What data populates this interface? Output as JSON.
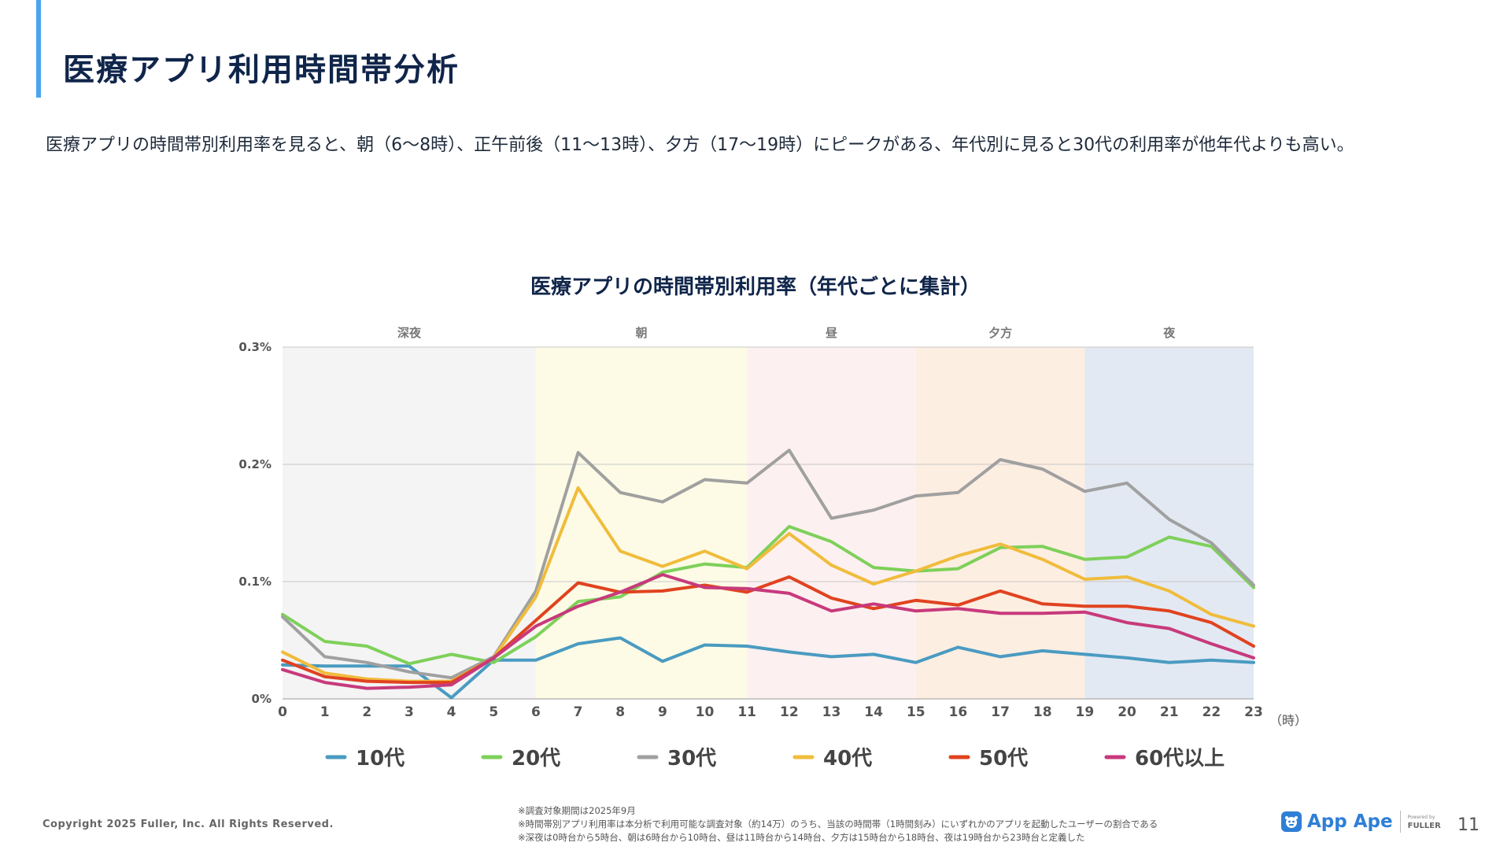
{
  "page": {
    "title": "医療アプリ利用時間帯分析",
    "summary": "医療アプリの時間帯別利用率を見ると、朝（6～8時）、正午前後（11～13時）、夕方（17～19時）にピークがある、年代別に見ると30代の利用率が他年代よりも高い。",
    "copyright": "Copyright 2025 Fuller, Inc. All Rights Reserved.",
    "notes": [
      "※調査対象期間は2025年9月",
      "※時間帯別アプリ利用率は本分析で利用可能な調査対象（約14万）のうち、当該の時間帯（1時間刻み）にいずれかのアプリを起動したユーザーの割合である",
      "※深夜は0時台から5時台、朝は6時台から10時台、昼は11時台から14時台、夕方は15時台から18時台、夜は19時台から23時台と定義した"
    ],
    "logo": {
      "text": "App Ape",
      "powered_label": "Powered by",
      "company": "FULLER"
    },
    "page_number": "11"
  },
  "chart_data": {
    "type": "line",
    "title": "医療アプリの時間帯別利用率（年代ごとに集計）",
    "xlabel": "（時）",
    "ylabel": "",
    "x": [
      0,
      1,
      2,
      3,
      4,
      5,
      6,
      7,
      8,
      9,
      10,
      11,
      12,
      13,
      14,
      15,
      16,
      17,
      18,
      19,
      20,
      21,
      22,
      23
    ],
    "ylim": [
      0,
      0.3
    ],
    "yticks": [
      {
        "value": 0,
        "label": "0%"
      },
      {
        "value": 0.1,
        "label": "0.1%"
      },
      {
        "value": 0.2,
        "label": "0.2%"
      },
      {
        "value": 0.3,
        "label": "0.3%"
      }
    ],
    "bands": [
      {
        "label": "深夜",
        "from": 0,
        "to": 6,
        "color": "#f4f4f4"
      },
      {
        "label": "朝",
        "from": 6,
        "to": 11,
        "color": "#fdfbe6"
      },
      {
        "label": "昼",
        "from": 11,
        "to": 15,
        "color": "#fdf0f0"
      },
      {
        "label": "夕方",
        "from": 15,
        "to": 19,
        "color": "#fdeee2"
      },
      {
        "label": "夜",
        "from": 19,
        "to": 23,
        "color": "#e3e9f3"
      }
    ],
    "series": [
      {
        "name": "10代",
        "color": "#4a9bc1",
        "values": [
          0.029,
          0.028,
          0.028,
          0.028,
          0.001,
          0.033,
          0.033,
          0.047,
          0.052,
          0.032,
          0.046,
          0.045,
          0.04,
          0.036,
          0.038,
          0.031,
          0.044,
          0.036,
          0.041,
          0.038,
          0.035,
          0.031,
          0.033,
          0.031
        ]
      },
      {
        "name": "20代",
        "color": "#7ed05a",
        "values": [
          0.072,
          0.049,
          0.045,
          0.03,
          0.038,
          0.031,
          0.053,
          0.083,
          0.087,
          0.108,
          0.115,
          0.112,
          0.147,
          0.134,
          0.112,
          0.109,
          0.111,
          0.129,
          0.13,
          0.119,
          0.121,
          0.138,
          0.13,
          0.095
        ]
      },
      {
        "name": "30代",
        "color": "#a0a0a0",
        "values": [
          0.07,
          0.036,
          0.031,
          0.023,
          0.018,
          0.036,
          0.092,
          0.21,
          0.176,
          0.168,
          0.187,
          0.184,
          0.212,
          0.154,
          0.161,
          0.173,
          0.176,
          0.204,
          0.196,
          0.177,
          0.184,
          0.153,
          0.133,
          0.097
        ]
      },
      {
        "name": "40代",
        "color": "#f0bc3c",
        "values": [
          0.04,
          0.022,
          0.017,
          0.015,
          0.015,
          0.035,
          0.087,
          0.18,
          0.126,
          0.113,
          0.126,
          0.111,
          0.141,
          0.114,
          0.098,
          0.109,
          0.122,
          0.132,
          0.119,
          0.102,
          0.104,
          0.092,
          0.072,
          0.062
        ]
      },
      {
        "name": "50代",
        "color": "#e0431f",
        "values": [
          0.033,
          0.019,
          0.015,
          0.014,
          0.014,
          0.035,
          0.067,
          0.099,
          0.091,
          0.092,
          0.097,
          0.091,
          0.104,
          0.086,
          0.077,
          0.084,
          0.08,
          0.092,
          0.081,
          0.079,
          0.079,
          0.075,
          0.065,
          0.045
        ]
      },
      {
        "name": "60代以上",
        "color": "#c73a7c",
        "values": [
          0.025,
          0.014,
          0.009,
          0.01,
          0.012,
          0.035,
          0.062,
          0.079,
          0.091,
          0.106,
          0.095,
          0.094,
          0.09,
          0.075,
          0.081,
          0.075,
          0.077,
          0.073,
          0.073,
          0.074,
          0.065,
          0.06,
          0.047,
          0.035
        ]
      }
    ]
  }
}
